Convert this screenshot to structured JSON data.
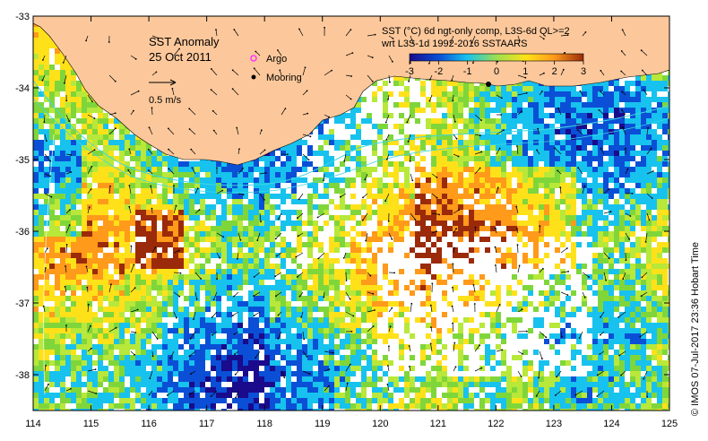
{
  "title": "SST Anomaly",
  "date": "25 Oct 2011",
  "legend": {
    "argo_label": "Argo",
    "mooring_label": "Mooring",
    "argo_color": "#ff33ff",
    "mooring_color": "#000000"
  },
  "current_scale": "0.5 m/s",
  "product_line1": "SST (°C) 6d ngt-only comp, L3S-6d QL>=2",
  "product_line2": "wrt L3S-1d 1992-2016 SSTAARS",
  "colorbar": {
    "ticks": [
      "-3",
      "-2",
      "-1",
      "0",
      "1",
      "2",
      "3"
    ],
    "colors": [
      "#1a0a8c",
      "#0a4fd6",
      "#17c2ee",
      "#9be04f",
      "#ffe11a",
      "#ff9a1a",
      "#9b2a0a"
    ]
  },
  "credit": "©  IMOS 07-Jul-2017 23:36 Hobart Time",
  "x_ticks": [
    "114",
    "115",
    "116",
    "117",
    "118",
    "119",
    "120",
    "121",
    "122",
    "123",
    "124",
    "125"
  ],
  "y_ticks": [
    "-33",
    "-34",
    "-35",
    "-36",
    "-37",
    "-38"
  ],
  "colors": {
    "land": "#fcc89b",
    "ocean_missing": "#ffffff",
    "frame": "#000000"
  }
}
